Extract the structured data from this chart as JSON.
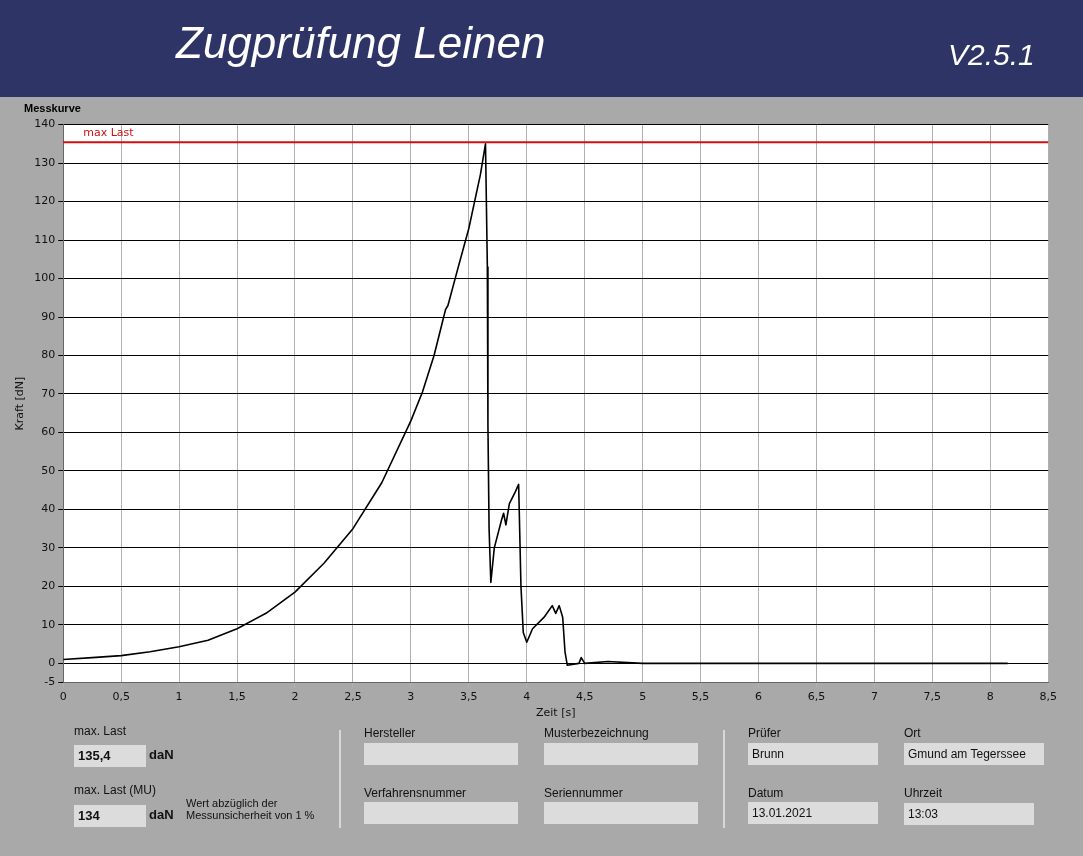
{
  "chart_data": {
    "type": "line",
    "title": "Zugprüfung Leinen",
    "subtitle": "Messkurve",
    "xlabel": "Zeit [s]",
    "ylabel": "Kraft [dN]",
    "annotations": [
      "V2.5.1",
      "max. Last",
      "135,4",
      "daN",
      "max. Last (MU)",
      "134",
      "daN",
      "Wert abzüglich der Messunsicherheit von 1 %",
      "Hersteller",
      "Musterbezeichnung",
      "Verfahrensnummer",
      "Seriennummer",
      "Prüfer",
      "Brunn",
      "Ort",
      "Gmund am Tegerssee",
      "Datum",
      "13.01.2021",
      "Uhrzeit",
      "13:03"
    ],
    "series": [
      {
        "color": "#000000",
        "x": [
          0,
          0.25,
          0.5,
          0.75,
          1,
          1.25,
          1.5,
          1.75,
          2,
          2.25,
          2.5,
          2.75,
          3,
          3.1,
          3.2,
          3.3,
          3.32,
          3.4,
          3.5,
          3.6,
          3.644,
          3.66,
          3.665,
          3.675,
          3.69,
          3.72,
          3.78,
          3.8,
          3.82,
          3.85,
          3.9,
          3.93,
          3.95,
          3.97,
          4,
          4.05,
          4.15,
          4.22,
          4.25,
          4.28,
          4.31,
          4.33,
          4.35,
          4.45,
          4.47,
          4.5,
          4.7,
          5,
          6,
          7,
          8.15
        ],
        "values": [
          1,
          1.5,
          2,
          3,
          4.3,
          6,
          9,
          13,
          18.5,
          26,
          35,
          47,
          63,
          70.5,
          80,
          92,
          93,
          102,
          113,
          127,
          135,
          103,
          62,
          35,
          21,
          30,
          37,
          39,
          36,
          41.5,
          44.5,
          46.5,
          20,
          8,
          5.5,
          9,
          12,
          15,
          13,
          15,
          12,
          3,
          -0.5,
          0,
          1.5,
          0,
          0.5,
          0,
          0,
          0,
          0
        ]
      }
    ],
    "xlim": [
      0,
      8.5
    ],
    "xticks": [
      0,
      {
        "value": 0.5,
        "label": "0,5"
      },
      1,
      {
        "value": 1.5,
        "label": "1,5"
      },
      2,
      {
        "value": 2.5,
        "label": "2,5"
      },
      3,
      {
        "value": 3.5,
        "label": "3,5"
      },
      4,
      {
        "value": 4.5,
        "label": "4,5"
      },
      5,
      {
        "value": 5.5,
        "label": "5,5"
      },
      6,
      {
        "value": 6.5,
        "label": "6,5"
      },
      7,
      {
        "value": 7.5,
        "label": "7,5"
      },
      8,
      {
        "value": 8.5,
        "label": "8,5"
      }
    ],
    "ylim": [
      -5,
      140
    ],
    "yticks": [
      -5,
      0,
      10,
      20,
      30,
      40,
      50,
      60,
      70,
      80,
      90,
      100,
      110,
      120,
      130,
      140
    ],
    "ref_lines": [
      {
        "axis": "y",
        "value": 135.4,
        "label": "max Last",
        "color": "#d01010"
      }
    ],
    "grid": true,
    "legend": false,
    "marker": "none",
    "line_style": "solid"
  }
}
